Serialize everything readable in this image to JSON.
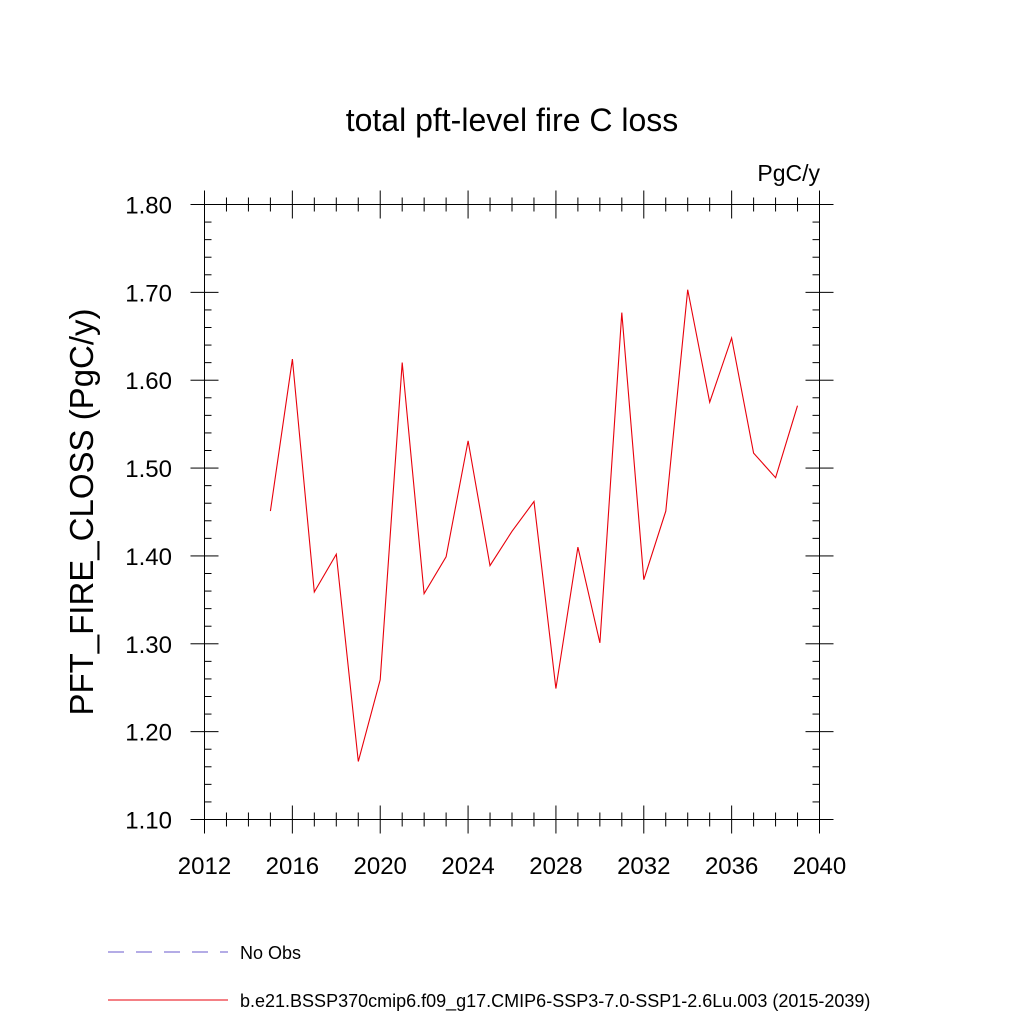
{
  "chart_data": {
    "type": "line",
    "title": "total pft-level fire C loss",
    "units_label": "PgC/y",
    "xlabel": "",
    "ylabel": "PFT_FIRE_CLOSS  (PgC/y)",
    "xlim": [
      2012,
      2040
    ],
    "ylim": [
      1.1,
      1.8
    ],
    "x_ticks": [
      2012,
      2016,
      2020,
      2024,
      2028,
      2032,
      2036,
      2040
    ],
    "y_ticks": [
      "1.10",
      "1.20",
      "1.30",
      "1.40",
      "1.50",
      "1.60",
      "1.70",
      "1.80"
    ],
    "grid": false,
    "series": [
      {
        "name": "b.e21.BSSP370cmip6.f09_g17.CMIP6-SSP3-7.0-SSP1-2.6Lu.003 (2015-2039)",
        "color": "#e8000b",
        "x": [
          2015,
          2016,
          2017,
          2018,
          2019,
          2020,
          2021,
          2022,
          2023,
          2024,
          2025,
          2026,
          2027,
          2028,
          2029,
          2030,
          2031,
          2032,
          2033,
          2034,
          2035,
          2036,
          2037,
          2038,
          2039
        ],
        "values": [
          1.451,
          1.624,
          1.359,
          1.402,
          1.166,
          1.259,
          1.62,
          1.357,
          1.399,
          1.531,
          1.389,
          1.428,
          1.462,
          1.249,
          1.41,
          1.301,
          1.677,
          1.373,
          1.451,
          1.703,
          1.575,
          1.648,
          1.517,
          1.489,
          1.571
        ]
      }
    ],
    "legend": {
      "placement": "bottom",
      "entries": [
        {
          "label": "No Obs",
          "color": "#6a5acd",
          "style": "dashed"
        },
        {
          "label": "b.e21.BSSP370cmip6.f09_g17.CMIP6-SSP3-7.0-SSP1-2.6Lu.003 (2015-2039)",
          "color": "#e8000b",
          "style": "solid"
        }
      ]
    }
  }
}
